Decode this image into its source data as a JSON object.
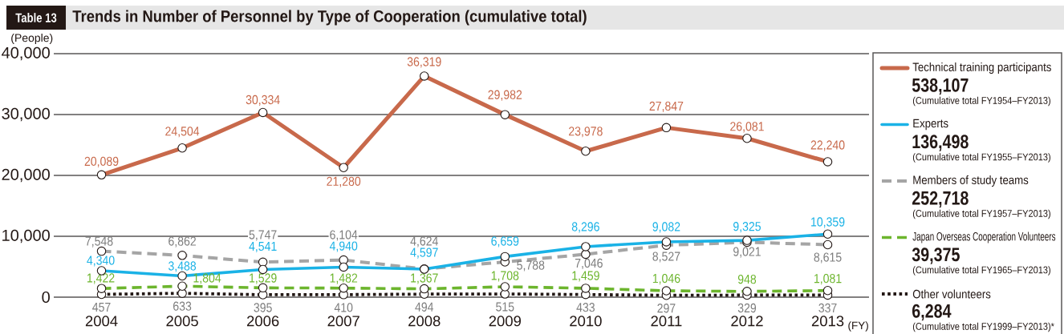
{
  "chart_data": {
    "type": "line",
    "title": "Trends in Number of Personnel by Type of Cooperation (cumulative total)",
    "ylabel": "(People)",
    "xlabel": "(FY)",
    "annotations": [
      "Table 13",
      "538,107",
      "(Cumulative total FY1954–FY2013)",
      "136,498",
      "(Cumulative total FY1955–FY2013)",
      "252,718",
      "(Cumulative total FY1957–FY2013)",
      "39,375",
      "(Cumulative total FY1965–FY2013)",
      "6,284",
      "(Cumulative total FY1999–FY2013)*"
    ],
    "categories": [
      "2004",
      "2005",
      "2006",
      "2007",
      "2008",
      "2009",
      "2010",
      "2011",
      "2012",
      "2013"
    ],
    "ylim": [
      0,
      40000
    ],
    "yticks": [
      0,
      {
        "value": 10000,
        "label": "10,000"
      },
      {
        "value": 20000,
        "label": "20,000"
      },
      {
        "value": 30000,
        "label": "30,000"
      },
      {
        "value": 40000,
        "label": "40,000"
      }
    ],
    "grid": "y",
    "legend": "right",
    "marker": "circle",
    "series": [
      {
        "name": "Technical training participants",
        "color": "#c8694b",
        "line_style": "solid",
        "values": [
          20089,
          24504,
          30334,
          21280,
          36319,
          29982,
          23978,
          27847,
          26081,
          22240
        ],
        "value_labels": [
          "20,089",
          "24,504",
          "30,334",
          "21,280",
          "36,319",
          "29,982",
          "23,978",
          "27,847",
          "26,081",
          "22,240"
        ]
      },
      {
        "name": "Experts",
        "color": "#1ab2e6",
        "line_style": "solid",
        "values": [
          4340,
          3488,
          4541,
          4940,
          4597,
          6659,
          8296,
          9082,
          9325,
          10359
        ],
        "value_labels": [
          "4,340",
          "3,488",
          "4,541",
          "4,940",
          "4,597",
          "6,659",
          "8,296",
          "9,082",
          "9,325",
          "10,359"
        ]
      },
      {
        "name": "Members of study teams",
        "color": "#a5a5a5",
        "line_style": "dashed",
        "values": [
          7548,
          6862,
          5747,
          6104,
          4624,
          5788,
          7046,
          8527,
          9021,
          8615
        ],
        "value_labels": [
          "7,548",
          "6,862",
          "5,747",
          "6,104",
          "4,624",
          "5,788",
          "7,046",
          "8,527",
          "9,021",
          "8,615"
        ]
      },
      {
        "name": "Japan Overseas Cooperation Volunteers",
        "color": "#6cb52d",
        "line_style": "dashed",
        "values": [
          1422,
          1804,
          1529,
          1482,
          1367,
          1708,
          1459,
          1046,
          948,
          1081
        ],
        "value_labels": [
          "1,422",
          "1,804",
          "1,529",
          "1,482",
          "1,367",
          "1,708",
          "1,459",
          "1,046",
          "948",
          "1,081"
        ]
      },
      {
        "name": "Other volunteers",
        "color": "#231815",
        "line_style": "dotted",
        "values": [
          457,
          633,
          395,
          410,
          494,
          515,
          433,
          297,
          329,
          337
        ],
        "value_labels": [
          "457",
          "633",
          "395",
          "410",
          "494",
          "515",
          "433",
          "297",
          "329",
          "337"
        ]
      }
    ]
  }
}
